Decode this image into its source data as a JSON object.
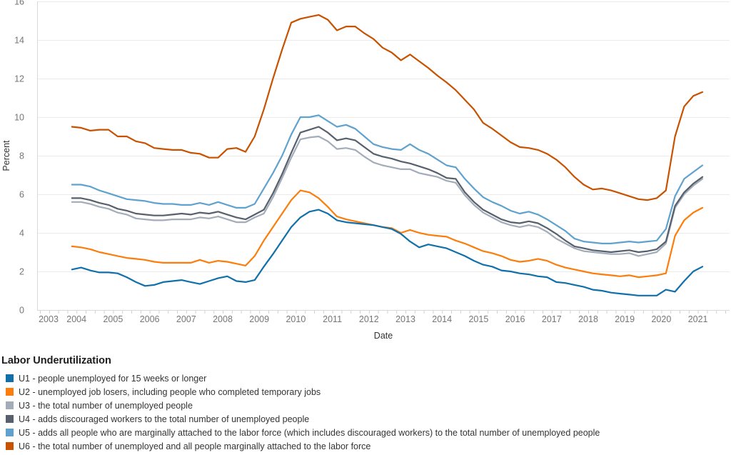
{
  "legend": {
    "title": "Labor Underutilization",
    "position": "bottom-left"
  },
  "axes": {
    "x": {
      "label": "Date",
      "ticks": [
        2003,
        2004,
        2005,
        2006,
        2007,
        2008,
        2009,
        2010,
        2011,
        2012,
        2013,
        2014,
        2015,
        2016,
        2017,
        2018,
        2019,
        2020,
        2021
      ],
      "min": 2003,
      "max": 2022
    },
    "y": {
      "label": "Percent",
      "ticks": [
        0,
        2,
        4,
        6,
        8,
        10,
        12,
        14,
        16
      ],
      "min": 0,
      "max": 16
    }
  },
  "chart_data": {
    "type": "line",
    "title": "",
    "xlabel": "Date",
    "ylabel": "Percent",
    "xlim": [
      2003,
      2022
    ],
    "ylim": [
      0,
      16
    ],
    "grid": "horizontal",
    "x_unit": "year (quarterly points, quarter midpoints)",
    "x_start": 2003.875,
    "x_step": 0.25,
    "n_points": 70,
    "series": [
      {
        "id": "U1",
        "label": "U1 - people unemployed for 15 weeks or longer",
        "color": "#1170aa",
        "values": [
          2.1,
          2.2,
          2.05,
          1.95,
          1.95,
          1.9,
          1.7,
          1.45,
          1.25,
          1.3,
          1.45,
          1.5,
          1.55,
          1.45,
          1.35,
          1.5,
          1.65,
          1.75,
          1.5,
          1.45,
          1.55,
          2.25,
          2.9,
          3.6,
          4.3,
          4.8,
          5.1,
          5.2,
          5.0,
          4.65,
          4.55,
          4.5,
          4.45,
          4.4,
          4.3,
          4.2,
          3.95,
          3.55,
          3.25,
          3.4,
          3.3,
          3.2,
          3.0,
          2.8,
          2.55,
          2.35,
          2.25,
          2.05,
          2.0,
          1.9,
          1.85,
          1.75,
          1.7,
          1.45,
          1.4,
          1.3,
          1.2,
          1.05,
          1.0,
          0.9,
          0.85,
          0.8,
          0.75,
          0.75,
          0.75,
          1.05,
          0.95,
          1.5,
          2.0,
          2.25
        ]
      },
      {
        "id": "U2",
        "label": "U2 - unemployed job losers, including people who completed temporary jobs",
        "color": "#fc7d0b",
        "values": [
          3.3,
          3.25,
          3.15,
          3.0,
          2.9,
          2.8,
          2.7,
          2.65,
          2.6,
          2.5,
          2.45,
          2.45,
          2.45,
          2.45,
          2.6,
          2.45,
          2.55,
          2.5,
          2.4,
          2.3,
          2.8,
          3.6,
          4.3,
          5.0,
          5.7,
          6.2,
          6.1,
          5.8,
          5.35,
          4.85,
          4.7,
          4.6,
          4.5,
          4.4,
          4.3,
          4.25,
          4.0,
          4.15,
          4.0,
          3.9,
          3.85,
          3.8,
          3.6,
          3.45,
          3.25,
          3.05,
          2.95,
          2.8,
          2.6,
          2.5,
          2.55,
          2.65,
          2.55,
          2.35,
          2.2,
          2.1,
          2.0,
          1.9,
          1.85,
          1.8,
          1.75,
          1.8,
          1.7,
          1.75,
          1.8,
          1.9,
          3.85,
          4.65,
          5.05,
          5.3
        ]
      },
      {
        "id": "U3",
        "label": "U3 - the total number of unemployed people",
        "color": "#a3acb9",
        "values": [
          5.6,
          5.6,
          5.5,
          5.35,
          5.25,
          5.05,
          4.95,
          4.75,
          4.7,
          4.65,
          4.65,
          4.7,
          4.7,
          4.7,
          4.8,
          4.75,
          4.85,
          4.7,
          4.55,
          4.55,
          4.8,
          5.0,
          5.85,
          6.85,
          7.9,
          8.85,
          8.95,
          9.0,
          8.75,
          8.35,
          8.4,
          8.3,
          7.95,
          7.65,
          7.5,
          7.4,
          7.3,
          7.3,
          7.1,
          7.0,
          6.9,
          6.7,
          6.6,
          5.95,
          5.45,
          5.05,
          4.8,
          4.55,
          4.4,
          4.3,
          4.4,
          4.3,
          4.05,
          3.7,
          3.45,
          3.2,
          3.05,
          3.0,
          2.95,
          2.9,
          2.9,
          2.95,
          2.8,
          2.9,
          3.0,
          3.45,
          5.3,
          6.0,
          6.45,
          6.8
        ]
      },
      {
        "id": "U4",
        "label": "U4 - adds discouraged workers to the total number of unemployed people",
        "color": "#57606c",
        "values": [
          5.8,
          5.8,
          5.7,
          5.55,
          5.45,
          5.25,
          5.15,
          5.0,
          4.95,
          4.9,
          4.9,
          4.95,
          5.0,
          4.95,
          5.05,
          5.0,
          5.1,
          4.95,
          4.8,
          4.7,
          4.95,
          5.2,
          6.05,
          7.05,
          8.15,
          9.2,
          9.35,
          9.5,
          9.2,
          8.8,
          8.9,
          8.8,
          8.45,
          8.1,
          7.95,
          7.85,
          7.7,
          7.6,
          7.45,
          7.3,
          7.1,
          6.85,
          6.8,
          6.1,
          5.6,
          5.2,
          4.95,
          4.7,
          4.55,
          4.5,
          4.6,
          4.5,
          4.25,
          3.95,
          3.6,
          3.3,
          3.2,
          3.1,
          3.05,
          3.0,
          3.05,
          3.1,
          3.0,
          3.05,
          3.15,
          3.55,
          5.4,
          6.1,
          6.55,
          6.9
        ]
      },
      {
        "id": "U5",
        "label": "U5 - adds all people who are marginally attached to the labor force (which includes discouraged workers) to the total number of unemployed people",
        "color": "#5fa2ce",
        "values": [
          6.5,
          6.5,
          6.4,
          6.2,
          6.05,
          5.9,
          5.75,
          5.7,
          5.65,
          5.55,
          5.5,
          5.5,
          5.45,
          5.45,
          5.55,
          5.45,
          5.6,
          5.45,
          5.3,
          5.3,
          5.5,
          6.3,
          7.1,
          8.0,
          9.1,
          10.0,
          10.0,
          10.1,
          9.8,
          9.5,
          9.6,
          9.4,
          9.0,
          8.6,
          8.45,
          8.35,
          8.3,
          8.6,
          8.3,
          8.1,
          7.8,
          7.5,
          7.4,
          6.8,
          6.3,
          5.85,
          5.6,
          5.4,
          5.15,
          5.0,
          5.1,
          4.95,
          4.7,
          4.4,
          4.1,
          3.7,
          3.55,
          3.5,
          3.45,
          3.45,
          3.5,
          3.55,
          3.5,
          3.55,
          3.6,
          4.2,
          5.9,
          6.8,
          7.15,
          7.5
        ]
      },
      {
        "id": "U6",
        "label": "U6 - the total number of unemployed and all people marginally attached to the labor force",
        "color": "#c85200",
        "values": [
          9.5,
          9.45,
          9.3,
          9.35,
          9.35,
          9.0,
          9.0,
          8.75,
          8.65,
          8.4,
          8.35,
          8.3,
          8.3,
          8.15,
          8.1,
          7.9,
          7.9,
          8.35,
          8.4,
          8.2,
          9.0,
          10.4,
          12.0,
          13.5,
          14.9,
          15.1,
          15.2,
          15.3,
          15.05,
          14.5,
          14.7,
          14.7,
          14.35,
          14.05,
          13.6,
          13.35,
          12.95,
          13.25,
          12.9,
          12.55,
          12.15,
          11.8,
          11.4,
          10.9,
          10.4,
          9.7,
          9.4,
          9.05,
          8.7,
          8.45,
          8.4,
          8.3,
          8.1,
          7.8,
          7.4,
          6.9,
          6.5,
          6.25,
          6.3,
          6.2,
          6.05,
          5.9,
          5.75,
          5.7,
          5.8,
          6.2,
          9.0,
          10.55,
          11.1,
          11.3
        ]
      }
    ],
    "style": {
      "grid_color": "#ebebeb",
      "axis_line_color": "#d9d9d9",
      "tick_color": "#cfcfcf",
      "tick_label_color": "#767676",
      "axis_title_color": "#333333"
    }
  }
}
